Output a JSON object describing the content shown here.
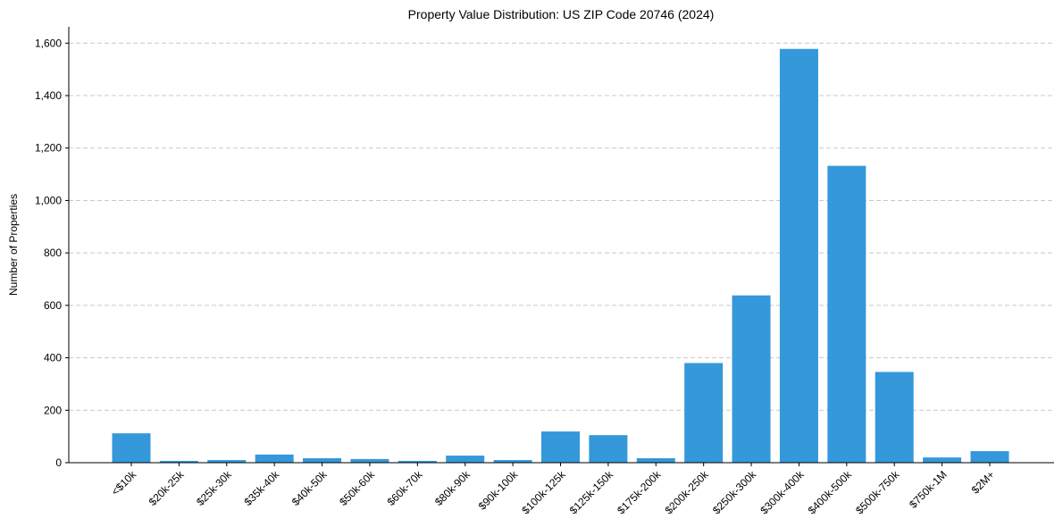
{
  "chart_data": {
    "type": "bar",
    "title": "Property Value Distribution: US ZIP Code 20746 (2024)",
    "xlabel": "",
    "ylabel": "Number of Properties",
    "ylim": [
      0,
      1660
    ],
    "yticks": [
      0,
      200,
      400,
      600,
      800,
      1000,
      1200,
      1400,
      1600
    ],
    "ytick_labels": [
      "0",
      "200",
      "400",
      "600",
      "800",
      "1,000",
      "1,200",
      "1,400",
      "1,600"
    ],
    "grid": "y-dashed",
    "bar_color": "#3498db",
    "categories": [
      "<$10k",
      "$20k-25k",
      "$25k-30k",
      "$35k-40k",
      "$40k-50k",
      "$50k-60k",
      "$60k-70k",
      "$80k-90k",
      "$90k-100k",
      "$100k-125k",
      "$125k-150k",
      "$175k-200k",
      "$200k-250k",
      "$250k-300k",
      "$300k-400k",
      "$400k-500k",
      "$500k-750k",
      "$750k-1M",
      "$2M+"
    ],
    "values": [
      112,
      7,
      10,
      31,
      17,
      14,
      7,
      27,
      10,
      119,
      105,
      17,
      380,
      638,
      1578,
      1132,
      346,
      20,
      44
    ]
  }
}
